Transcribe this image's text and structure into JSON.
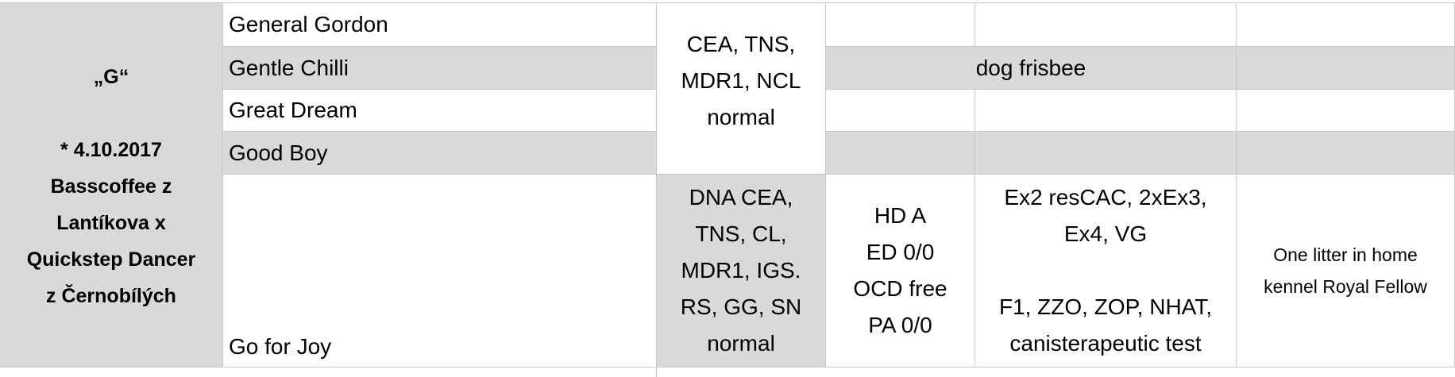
{
  "litter": {
    "title": "„G“",
    "birth": "* 4.10.2017",
    "parents": [
      "Basscoffee z",
      "Lantíkova x",
      "Quickstep Dancer",
      "z Černobílých"
    ]
  },
  "names": [
    "General Gordon",
    "Gentle Chilli",
    "Great Dream",
    "Good Boy",
    "Go for Joy"
  ],
  "health_group": [
    "CEA, TNS,",
    "MDR1, NCL",
    "normal"
  ],
  "activity": "dog frisbee",
  "go_for_joy": {
    "health": [
      "DNA CEA,",
      "TNS, CL,",
      "MDR1, IGS.",
      "RS, GG, SN",
      "normal"
    ],
    "xray": [
      "HD A",
      "ED 0/0",
      "OCD free",
      "PA 0/0"
    ],
    "shows": [
      "Ex2 resCAC, 2xEx3,",
      "Ex4, VG"
    ],
    "exams": [
      "F1, ZZO, ZOP, NHAT,",
      "canisterapeutic test"
    ],
    "note": [
      "One litter in home",
      "kennel Royal Fellow"
    ]
  }
}
